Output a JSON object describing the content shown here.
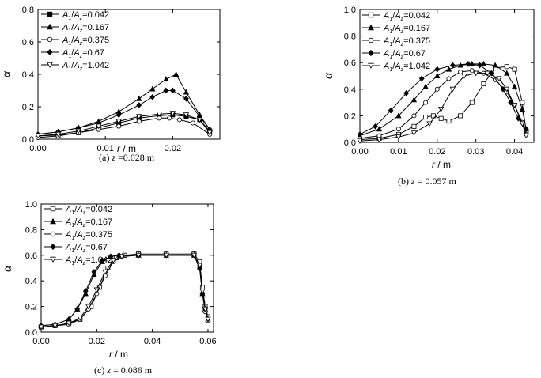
{
  "chart_data": [
    {
      "type": "line",
      "panel": "a",
      "caption_prefix": "(a)",
      "caption_var": "z",
      "caption_value": "=0.028 m",
      "xlabel_var": "r",
      "xlabel_unit": "/ m",
      "ylabel": "α",
      "xlim": [
        0.0,
        0.027
      ],
      "ylim": [
        0.0,
        0.8
      ],
      "xticks": [
        "0.00",
        "0.01",
        "0.02"
      ],
      "xtick_values": [
        0.0,
        0.01,
        0.02
      ],
      "yticks": [
        "0.0",
        "0.2",
        "0.4",
        "0.6",
        "0.8"
      ],
      "ytick_values": [
        0.0,
        0.2,
        0.4,
        0.6,
        0.8
      ],
      "legend_position": "top-left",
      "series": [
        {
          "name": "A1/Az=0.042",
          "label_value": "=0.042",
          "marker": "square-filled",
          "x": [
            0.0,
            0.003,
            0.006,
            0.009,
            0.012,
            0.015,
            0.018,
            0.02,
            0.022,
            0.024,
            0.0255
          ],
          "y": [
            0.02,
            0.025,
            0.04,
            0.07,
            0.1,
            0.13,
            0.145,
            0.15,
            0.14,
            0.12,
            0.05
          ]
        },
        {
          "name": "A1/Az=0.167",
          "label_value": "=0.167",
          "marker": "triangle-filled",
          "x": [
            0.0,
            0.003,
            0.006,
            0.009,
            0.012,
            0.015,
            0.017,
            0.019,
            0.0205,
            0.022,
            0.024,
            0.0255
          ],
          "y": [
            0.03,
            0.045,
            0.07,
            0.11,
            0.17,
            0.25,
            0.31,
            0.37,
            0.4,
            0.29,
            0.15,
            0.06
          ]
        },
        {
          "name": "A1/Az=0.375",
          "label_value": "=0.375",
          "marker": "circle-open",
          "x": [
            0.0,
            0.003,
            0.006,
            0.009,
            0.012,
            0.015,
            0.018,
            0.0195,
            0.021,
            0.023,
            0.0255
          ],
          "y": [
            0.01,
            0.02,
            0.04,
            0.06,
            0.08,
            0.11,
            0.13,
            0.13,
            0.12,
            0.1,
            0.03
          ]
        },
        {
          "name": "A1/Az=0.67",
          "label_value": "=0.67",
          "marker": "diamond-filled",
          "x": [
            0.0,
            0.003,
            0.006,
            0.009,
            0.012,
            0.015,
            0.017,
            0.019,
            0.02,
            0.022,
            0.024,
            0.0255
          ],
          "y": [
            0.03,
            0.045,
            0.07,
            0.1,
            0.15,
            0.21,
            0.26,
            0.3,
            0.3,
            0.25,
            0.14,
            0.06
          ]
        },
        {
          "name": "A1/Az=1.042",
          "label_value": "=1.042",
          "marker": "triangle-down-open",
          "x": [
            0.0,
            0.003,
            0.006,
            0.009,
            0.012,
            0.015,
            0.018,
            0.02,
            0.022,
            0.024,
            0.0255
          ],
          "y": [
            0.02,
            0.03,
            0.05,
            0.08,
            0.11,
            0.14,
            0.155,
            0.16,
            0.15,
            0.12,
            0.04
          ]
        }
      ]
    },
    {
      "type": "line",
      "panel": "b",
      "caption_prefix": "(b)",
      "caption_var": "z",
      "caption_value": "= 0.057 m",
      "xlabel_var": "r",
      "xlabel_unit": "/ m",
      "ylabel": "α",
      "xlim": [
        0.0,
        0.045
      ],
      "ylim": [
        0.0,
        1.0
      ],
      "xticks": [
        "0.00",
        "0.01",
        "0.02",
        "0.03",
        "0.04"
      ],
      "xtick_values": [
        0.0,
        0.01,
        0.02,
        0.03,
        0.04
      ],
      "yticks": [
        "0.0",
        "0.2",
        "0.4",
        "0.6",
        "0.8",
        "1.0"
      ],
      "ytick_values": [
        0.0,
        0.2,
        0.4,
        0.6,
        0.8,
        1.0
      ],
      "legend_position": "top-left",
      "series": [
        {
          "name": "A1/Az=0.042",
          "label_value": "=0.042",
          "marker": "square-open",
          "x": [
            0.0,
            0.005,
            0.01,
            0.014,
            0.017,
            0.019,
            0.021,
            0.023,
            0.026,
            0.029,
            0.032,
            0.035,
            0.038,
            0.04,
            0.042,
            0.043
          ],
          "y": [
            0.02,
            0.03,
            0.06,
            0.12,
            0.19,
            0.2,
            0.18,
            0.16,
            0.2,
            0.3,
            0.44,
            0.56,
            0.57,
            0.55,
            0.3,
            0.08
          ]
        },
        {
          "name": "A1/Az=0.167",
          "label_value": "=0.167",
          "marker": "triangle-filled",
          "x": [
            0.0,
            0.005,
            0.01,
            0.014,
            0.017,
            0.02,
            0.023,
            0.026,
            0.029,
            0.032,
            0.035,
            0.038,
            0.04,
            0.042,
            0.043
          ],
          "y": [
            0.05,
            0.1,
            0.2,
            0.32,
            0.42,
            0.5,
            0.55,
            0.58,
            0.59,
            0.59,
            0.58,
            0.52,
            0.42,
            0.25,
            0.1
          ]
        },
        {
          "name": "A1/Az=0.375",
          "label_value": "=0.375",
          "marker": "circle-open",
          "x": [
            0.0,
            0.005,
            0.01,
            0.014,
            0.017,
            0.02,
            0.023,
            0.026,
            0.029,
            0.032,
            0.035,
            0.038,
            0.04,
            0.042,
            0.043
          ],
          "y": [
            0.03,
            0.05,
            0.1,
            0.2,
            0.3,
            0.4,
            0.48,
            0.53,
            0.54,
            0.52,
            0.47,
            0.38,
            0.28,
            0.15,
            0.06
          ]
        },
        {
          "name": "A1/Az=0.67",
          "label_value": "=0.67",
          "marker": "diamond-filled",
          "x": [
            0.0,
            0.004,
            0.008,
            0.012,
            0.016,
            0.02,
            0.024,
            0.028,
            0.031,
            0.034,
            0.037,
            0.039,
            0.041,
            0.043
          ],
          "y": [
            0.06,
            0.12,
            0.24,
            0.37,
            0.48,
            0.55,
            0.58,
            0.59,
            0.58,
            0.52,
            0.4,
            0.3,
            0.18,
            0.1
          ]
        },
        {
          "name": "A1/Az=1.042",
          "label_value": "=1.042",
          "marker": "triangle-down-open",
          "x": [
            0.0,
            0.005,
            0.01,
            0.014,
            0.018,
            0.021,
            0.024,
            0.027,
            0.03,
            0.033,
            0.036,
            0.038,
            0.04,
            0.042,
            0.043
          ],
          "y": [
            0.01,
            0.02,
            0.04,
            0.07,
            0.14,
            0.25,
            0.4,
            0.5,
            0.52,
            0.52,
            0.48,
            0.4,
            0.28,
            0.14,
            0.05
          ]
        }
      ]
    },
    {
      "type": "line",
      "panel": "c",
      "caption_prefix": "(c)",
      "caption_var": "z",
      "caption_value": "= 0.086 m",
      "xlabel_var": "r",
      "xlabel_unit": "/ m",
      "ylabel": "α",
      "xlim": [
        0.0,
        0.062
      ],
      "ylim": [
        0.0,
        1.0
      ],
      "xticks": [
        "0.00",
        "0.02",
        "0.04",
        "0.06"
      ],
      "xtick_values": [
        0.0,
        0.02,
        0.04,
        0.06
      ],
      "yticks": [
        "0.0",
        "0.2",
        "0.4",
        "0.6",
        "0.8",
        "1.0"
      ],
      "ytick_values": [
        0.0,
        0.2,
        0.4,
        0.6,
        0.8,
        1.0
      ],
      "legend_position": "top-left",
      "series": [
        {
          "name": "A1/Az=0.042",
          "label_value": "=0.042",
          "marker": "square-open",
          "x": [
            0.0,
            0.005,
            0.01,
            0.014,
            0.018,
            0.021,
            0.024,
            0.027,
            0.03,
            0.035,
            0.045,
            0.055,
            0.057,
            0.058,
            0.059,
            0.06
          ],
          "y": [
            0.04,
            0.05,
            0.07,
            0.1,
            0.2,
            0.35,
            0.5,
            0.58,
            0.6,
            0.61,
            0.61,
            0.61,
            0.55,
            0.35,
            0.2,
            0.12
          ]
        },
        {
          "name": "A1/Az=0.167",
          "label_value": "=0.167",
          "marker": "triangle-filled",
          "x": [
            0.0,
            0.005,
            0.01,
            0.013,
            0.016,
            0.019,
            0.022,
            0.025,
            0.028,
            0.035,
            0.045,
            0.055,
            0.057,
            0.058,
            0.059,
            0.06
          ],
          "y": [
            0.05,
            0.06,
            0.1,
            0.18,
            0.3,
            0.45,
            0.55,
            0.59,
            0.6,
            0.6,
            0.6,
            0.6,
            0.5,
            0.3,
            0.18,
            0.1
          ]
        },
        {
          "name": "A1/Az=0.375",
          "label_value": "=0.375",
          "marker": "circle-open",
          "x": [
            0.0,
            0.005,
            0.01,
            0.014,
            0.017,
            0.02,
            0.023,
            0.026,
            0.029,
            0.035,
            0.045,
            0.055,
            0.057,
            0.058,
            0.059,
            0.06
          ],
          "y": [
            0.04,
            0.05,
            0.06,
            0.1,
            0.18,
            0.3,
            0.44,
            0.55,
            0.59,
            0.6,
            0.6,
            0.6,
            0.52,
            0.3,
            0.16,
            0.09
          ]
        },
        {
          "name": "A1/Az=0.67",
          "label_value": "=0.67",
          "marker": "diamond-filled",
          "x": [
            0.0,
            0.005,
            0.01,
            0.013,
            0.016,
            0.019,
            0.022,
            0.025,
            0.028,
            0.035,
            0.045,
            0.055,
            0.057,
            0.058,
            0.059,
            0.06
          ],
          "y": [
            0.05,
            0.06,
            0.1,
            0.18,
            0.32,
            0.47,
            0.56,
            0.59,
            0.6,
            0.6,
            0.6,
            0.6,
            0.5,
            0.3,
            0.18,
            0.1
          ]
        },
        {
          "name": "A1/Az=1.042",
          "label_value": "=1.042",
          "marker": "triangle-down-open",
          "x": [
            0.0,
            0.005,
            0.01,
            0.014,
            0.017,
            0.02,
            0.023,
            0.026,
            0.029,
            0.035,
            0.045,
            0.055,
            0.057,
            0.058,
            0.059,
            0.06
          ],
          "y": [
            0.04,
            0.05,
            0.07,
            0.11,
            0.2,
            0.33,
            0.47,
            0.56,
            0.59,
            0.6,
            0.6,
            0.6,
            0.52,
            0.32,
            0.18,
            0.1
          ]
        }
      ]
    }
  ]
}
